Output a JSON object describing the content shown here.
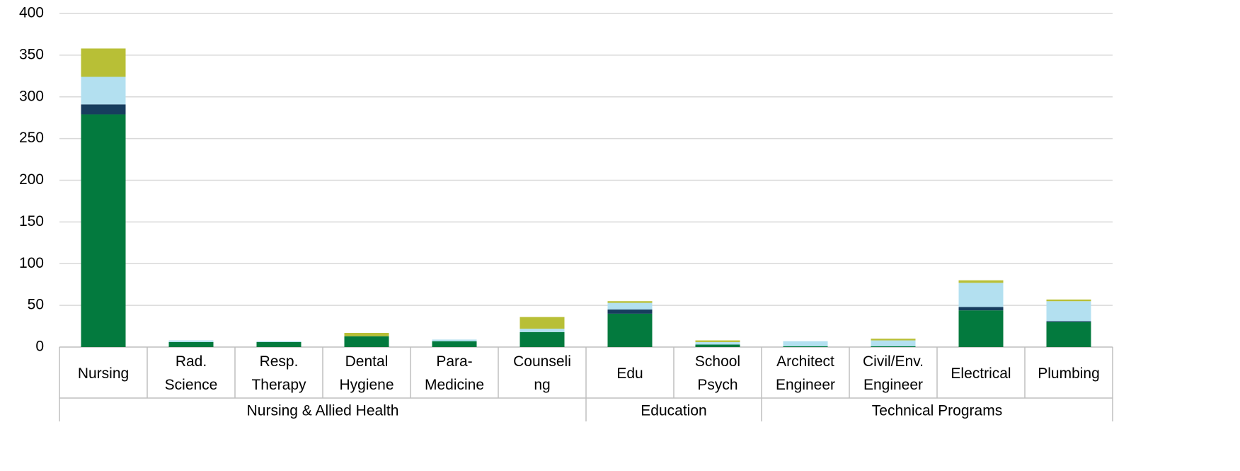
{
  "chart_data": {
    "type": "stacked_bar",
    "categories": [
      [
        "Nursing"
      ],
      [
        "Rad.",
        "Science"
      ],
      [
        "Resp.",
        "Therapy"
      ],
      [
        "Dental",
        "Hygiene"
      ],
      [
        "Para-",
        "Medicine"
      ],
      [
        "Counseli",
        "ng"
      ],
      [
        "Edu"
      ],
      [
        "School",
        "Psych"
      ],
      [
        "Architect",
        "Engineer"
      ],
      [
        "Civil/Env.",
        "Engineer"
      ],
      [
        "Electrical"
      ],
      [
        "Plumbing"
      ]
    ],
    "groups": [
      {
        "name": "Nursing & Allied Health",
        "span": 6
      },
      {
        "name": "Education",
        "span": 2
      },
      {
        "name": "Technical Programs",
        "span": 4
      }
    ],
    "series": [
      {
        "color": "#037a3e",
        "values": [
          279,
          6,
          6,
          13,
          7,
          18,
          40,
          3,
          1,
          1,
          44,
          30
        ]
      },
      {
        "color": "#173d5e",
        "values": [
          12,
          0,
          0,
          0,
          0,
          0,
          5,
          0,
          0,
          0,
          4,
          1
        ]
      },
      {
        "color": "#b3e0f0",
        "values": [
          33,
          2,
          1,
          0,
          2,
          4,
          8,
          3,
          6,
          7,
          29,
          24
        ]
      },
      {
        "color": "#b8bf36",
        "values": [
          34,
          0,
          0,
          4,
          0,
          14,
          2,
          2,
          0,
          2,
          3,
          2
        ]
      }
    ],
    "ylim": [
      0,
      400
    ],
    "yticks": [
      0,
      50,
      100,
      150,
      200,
      250,
      300,
      350,
      400
    ],
    "grid": true
  }
}
